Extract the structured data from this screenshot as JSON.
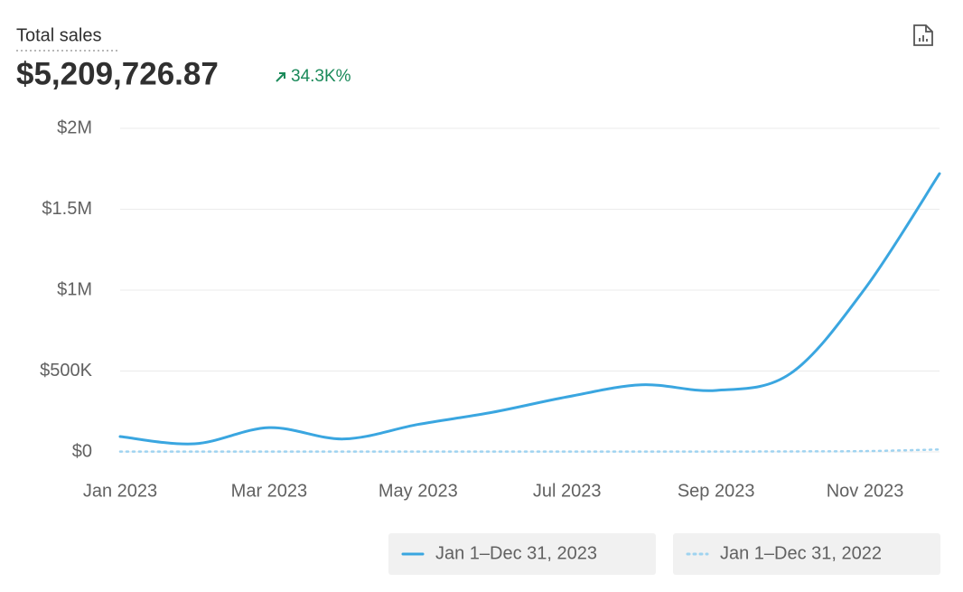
{
  "chart_data": {
    "type": "line",
    "title": "Total sales",
    "total": "$5,209,726.87",
    "change": "34.3K%",
    "categories": [
      "Jan 2023",
      null,
      "Mar 2023",
      null,
      "May 2023",
      null,
      "Jul 2023",
      null,
      "Sep 2023",
      null,
      "Nov 2023",
      null
    ],
    "series": [
      {
        "name": "Jan 1–Dec 31, 2023",
        "color": "#3aa6e0",
        "values": [
          95000,
          50000,
          150000,
          80000,
          170000,
          245000,
          340000,
          415000,
          380000,
          485000,
          1010000,
          1720000
        ]
      },
      {
        "name": "Jan 1–Dec 31, 2022",
        "color": "#9fd3f0",
        "values": [
          2000,
          2000,
          2000,
          2000,
          2000,
          2000,
          2000,
          2000,
          2000,
          3000,
          5000,
          15000
        ]
      }
    ],
    "ylim": [
      0,
      2000000
    ],
    "yticks": [
      {
        "value": 0,
        "label": "$0"
      },
      {
        "value": 500000,
        "label": "$500K"
      },
      {
        "value": 1000000,
        "label": "$1M"
      },
      {
        "value": 1500000,
        "label": "$1.5M"
      },
      {
        "value": 2000000,
        "label": "$2M"
      }
    ],
    "grid": true,
    "legend": "bottom-right"
  }
}
